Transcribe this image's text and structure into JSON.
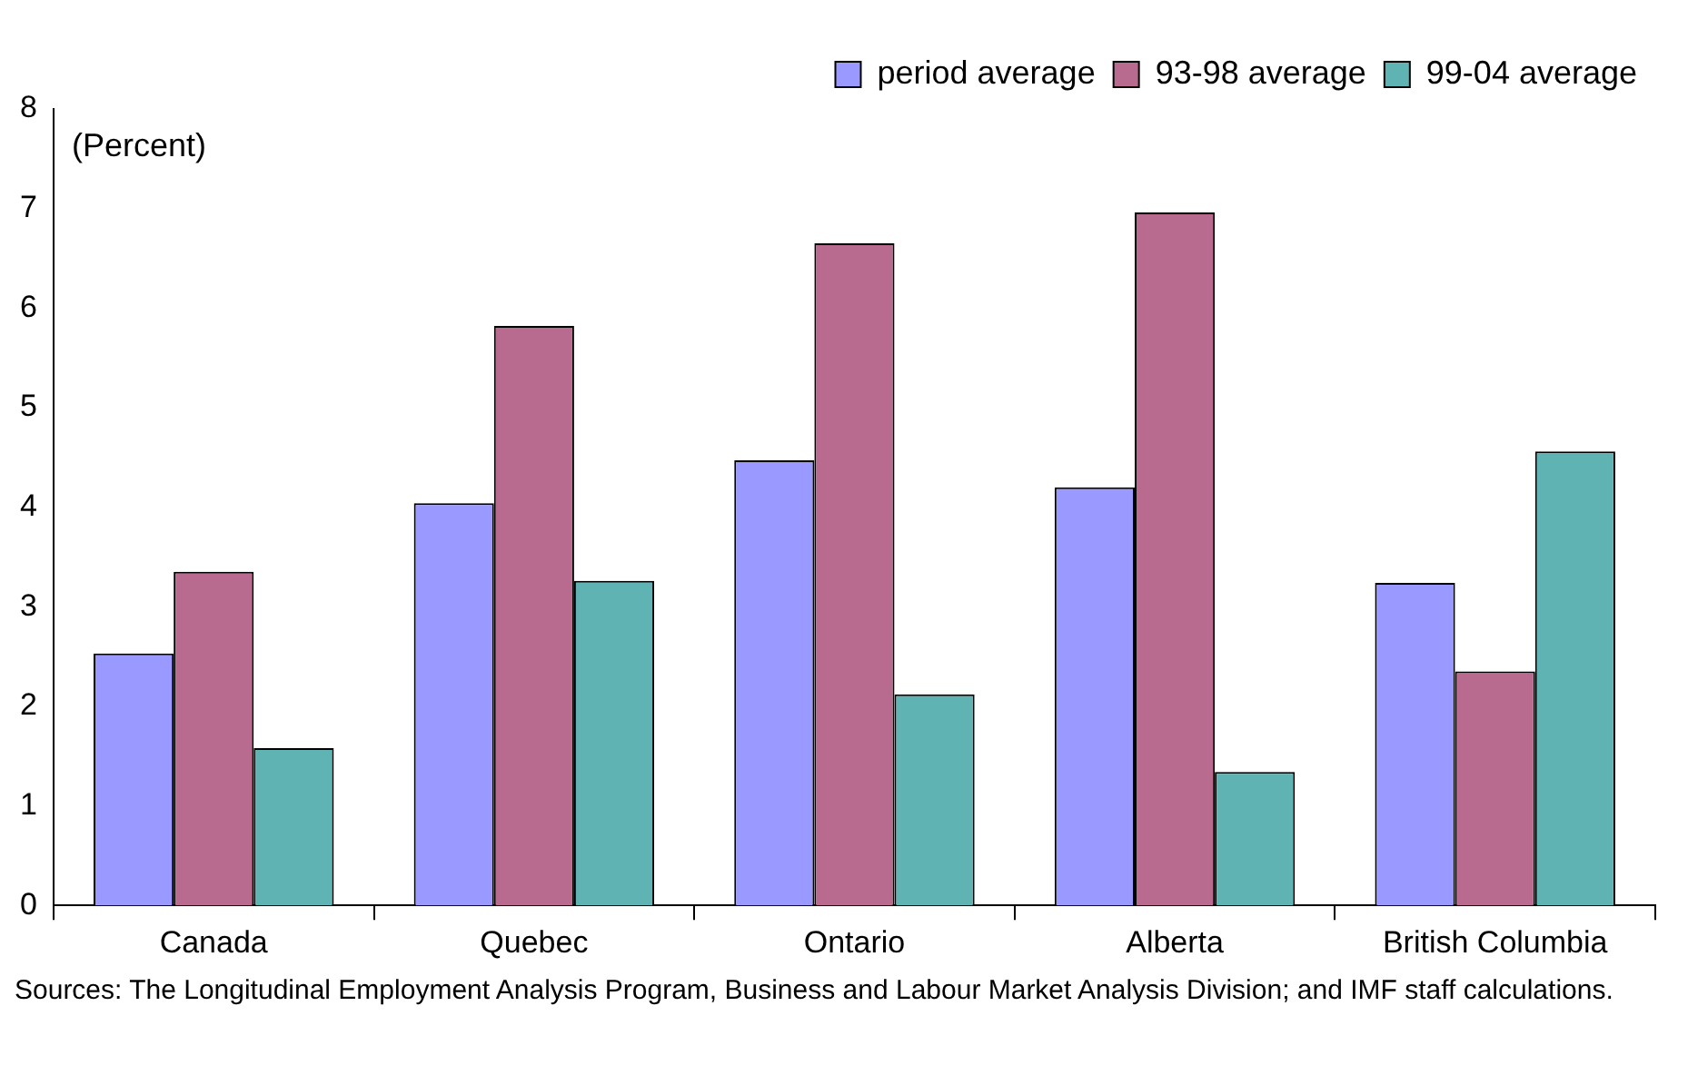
{
  "chart_data": {
    "type": "bar",
    "categories": [
      "Canada",
      "Quebec",
      "Ontario",
      "Alberta",
      "British Columbia"
    ],
    "series": [
      {
        "name": "period average",
        "color": "#9999ff",
        "values": [
          2.53,
          4.04,
          4.47,
          4.2,
          3.24
        ]
      },
      {
        "name": "93-98 average",
        "color": "#b86b8f",
        "values": [
          3.35,
          5.82,
          6.65,
          6.96,
          2.35
        ]
      },
      {
        "name": "99-04 average",
        "color": "#5fb3b3",
        "values": [
          1.58,
          3.26,
          2.12,
          1.34,
          4.56
        ]
      }
    ],
    "ylabel": "(Percent)",
    "ylim": [
      0,
      8
    ],
    "yticks": [
      0,
      1,
      2,
      3,
      4,
      5,
      6,
      7,
      8
    ],
    "legend": "top right",
    "annotations": [
      "Sources: The Longitudinal Employment Analysis Program, Business and Labour Market Analysis Division; and IMF staff calculations."
    ]
  }
}
